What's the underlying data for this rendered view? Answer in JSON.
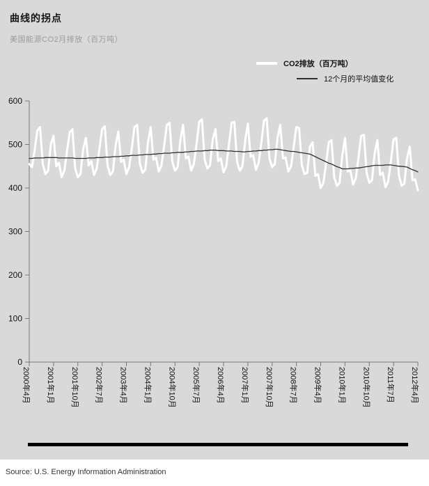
{
  "header": {
    "title": "曲线的拐点",
    "subtitle": "美国能源CO2月排放（百万吨）"
  },
  "legend": {
    "items": [
      {
        "label": "CO2排放（百万吨）"
      },
      {
        "label": "12个月的平均值变化"
      }
    ]
  },
  "footer": {
    "source": "Source: U.S. Energy Information Administration"
  },
  "colors": {
    "page_background": "#d9d9d9",
    "co2_line": "#ffffff",
    "average_line": "#2f2f2f",
    "axis": "#777777",
    "tick_text": "#111111",
    "divider": "#000000"
  },
  "chart_data": {
    "type": "line",
    "title": "曲线的拐点",
    "subtitle": "美国能源CO2月排放（百万吨）",
    "ylabel": "",
    "xlabel": "",
    "ylim": [
      0,
      600
    ],
    "yticks": [
      0,
      100,
      200,
      300,
      400,
      500,
      600
    ],
    "grid": false,
    "legend_position": "top-right",
    "x_unit": "month",
    "x_start": "2000年4月",
    "x_end": "2012年4月",
    "x_tick_every": 9,
    "x_tick_labels": [
      "2000年4月",
      "2001年1月",
      "2001年10月",
      "2002年7月",
      "2003年4月",
      "2004年1月",
      "2004年10月",
      "2005年7月",
      "2006年4月",
      "2007年1月",
      "2007年10月",
      "2008年7月",
      "2009年4月",
      "2010年1月",
      "2010年10月",
      "2011年7月",
      "2012年4月"
    ],
    "series": [
      {
        "name": "CO2排放（百万吨）",
        "color": "#ffffff",
        "width": 3,
        "values": [
          455,
          448,
          487,
          532,
          540,
          455,
          432,
          440,
          500,
          520,
          450,
          458,
          425,
          440,
          485,
          528,
          535,
          445,
          425,
          432,
          490,
          515,
          452,
          462,
          430,
          445,
          490,
          535,
          542,
          452,
          430,
          438,
          498,
          530,
          460,
          465,
          432,
          448,
          492,
          540,
          545,
          455,
          435,
          442,
          505,
          540,
          465,
          470,
          438,
          452,
          498,
          545,
          550,
          460,
          440,
          448,
          510,
          545,
          468,
          472,
          440,
          455,
          502,
          552,
          558,
          465,
          445,
          452,
          512,
          535,
          462,
          468,
          436,
          450,
          500,
          550,
          552,
          460,
          440,
          450,
          508,
          548,
          472,
          475,
          442,
          458,
          505,
          555,
          560,
          468,
          448,
          455,
          515,
          545,
          468,
          470,
          438,
          450,
          495,
          540,
          538,
          452,
          432,
          435,
          495,
          505,
          428,
          432,
          400,
          412,
          458,
          505,
          510,
          425,
          405,
          412,
          475,
          515,
          438,
          440,
          408,
          422,
          470,
          520,
          522,
          435,
          412,
          418,
          480,
          510,
          430,
          435,
          402,
          415,
          462,
          512,
          515,
          428,
          405,
          410,
          468,
          495,
          418,
          420,
          395
        ]
      },
      {
        "name": "12个月的平均值变化",
        "color": "#2f2f2f",
        "width": 1.3,
        "derived": "12-month moving average of CO2 series",
        "values": [
          468,
          468,
          469,
          469,
          469,
          469,
          470,
          470,
          470,
          470,
          470,
          469,
          469,
          469,
          469,
          469,
          469,
          468,
          468,
          468,
          468,
          468,
          469,
          469,
          469,
          470,
          470,
          470,
          471,
          471,
          471,
          472,
          472,
          472,
          473,
          473,
          474,
          474,
          475,
          475,
          475,
          476,
          476,
          477,
          477,
          477,
          478,
          478,
          479,
          479,
          480,
          480,
          480,
          481,
          481,
          482,
          482,
          482,
          483,
          483,
          484,
          484,
          485,
          485,
          485,
          486,
          486,
          487,
          487,
          487,
          486,
          486,
          486,
          485,
          485,
          485,
          484,
          484,
          484,
          483,
          483,
          484,
          484,
          485,
          485,
          486,
          486,
          487,
          487,
          488,
          488,
          489,
          489,
          488,
          487,
          486,
          485,
          484,
          484,
          483,
          482,
          481,
          480,
          479,
          478,
          475,
          472,
          469,
          466,
          463,
          460,
          457,
          455,
          452,
          449,
          447,
          444,
          444,
          444,
          445,
          445,
          446,
          446,
          447,
          448,
          449,
          450,
          451,
          452,
          452,
          452,
          452,
          453,
          453,
          453,
          452,
          451,
          450,
          450,
          449,
          448,
          445,
          442,
          440,
          437
        ]
      }
    ]
  }
}
